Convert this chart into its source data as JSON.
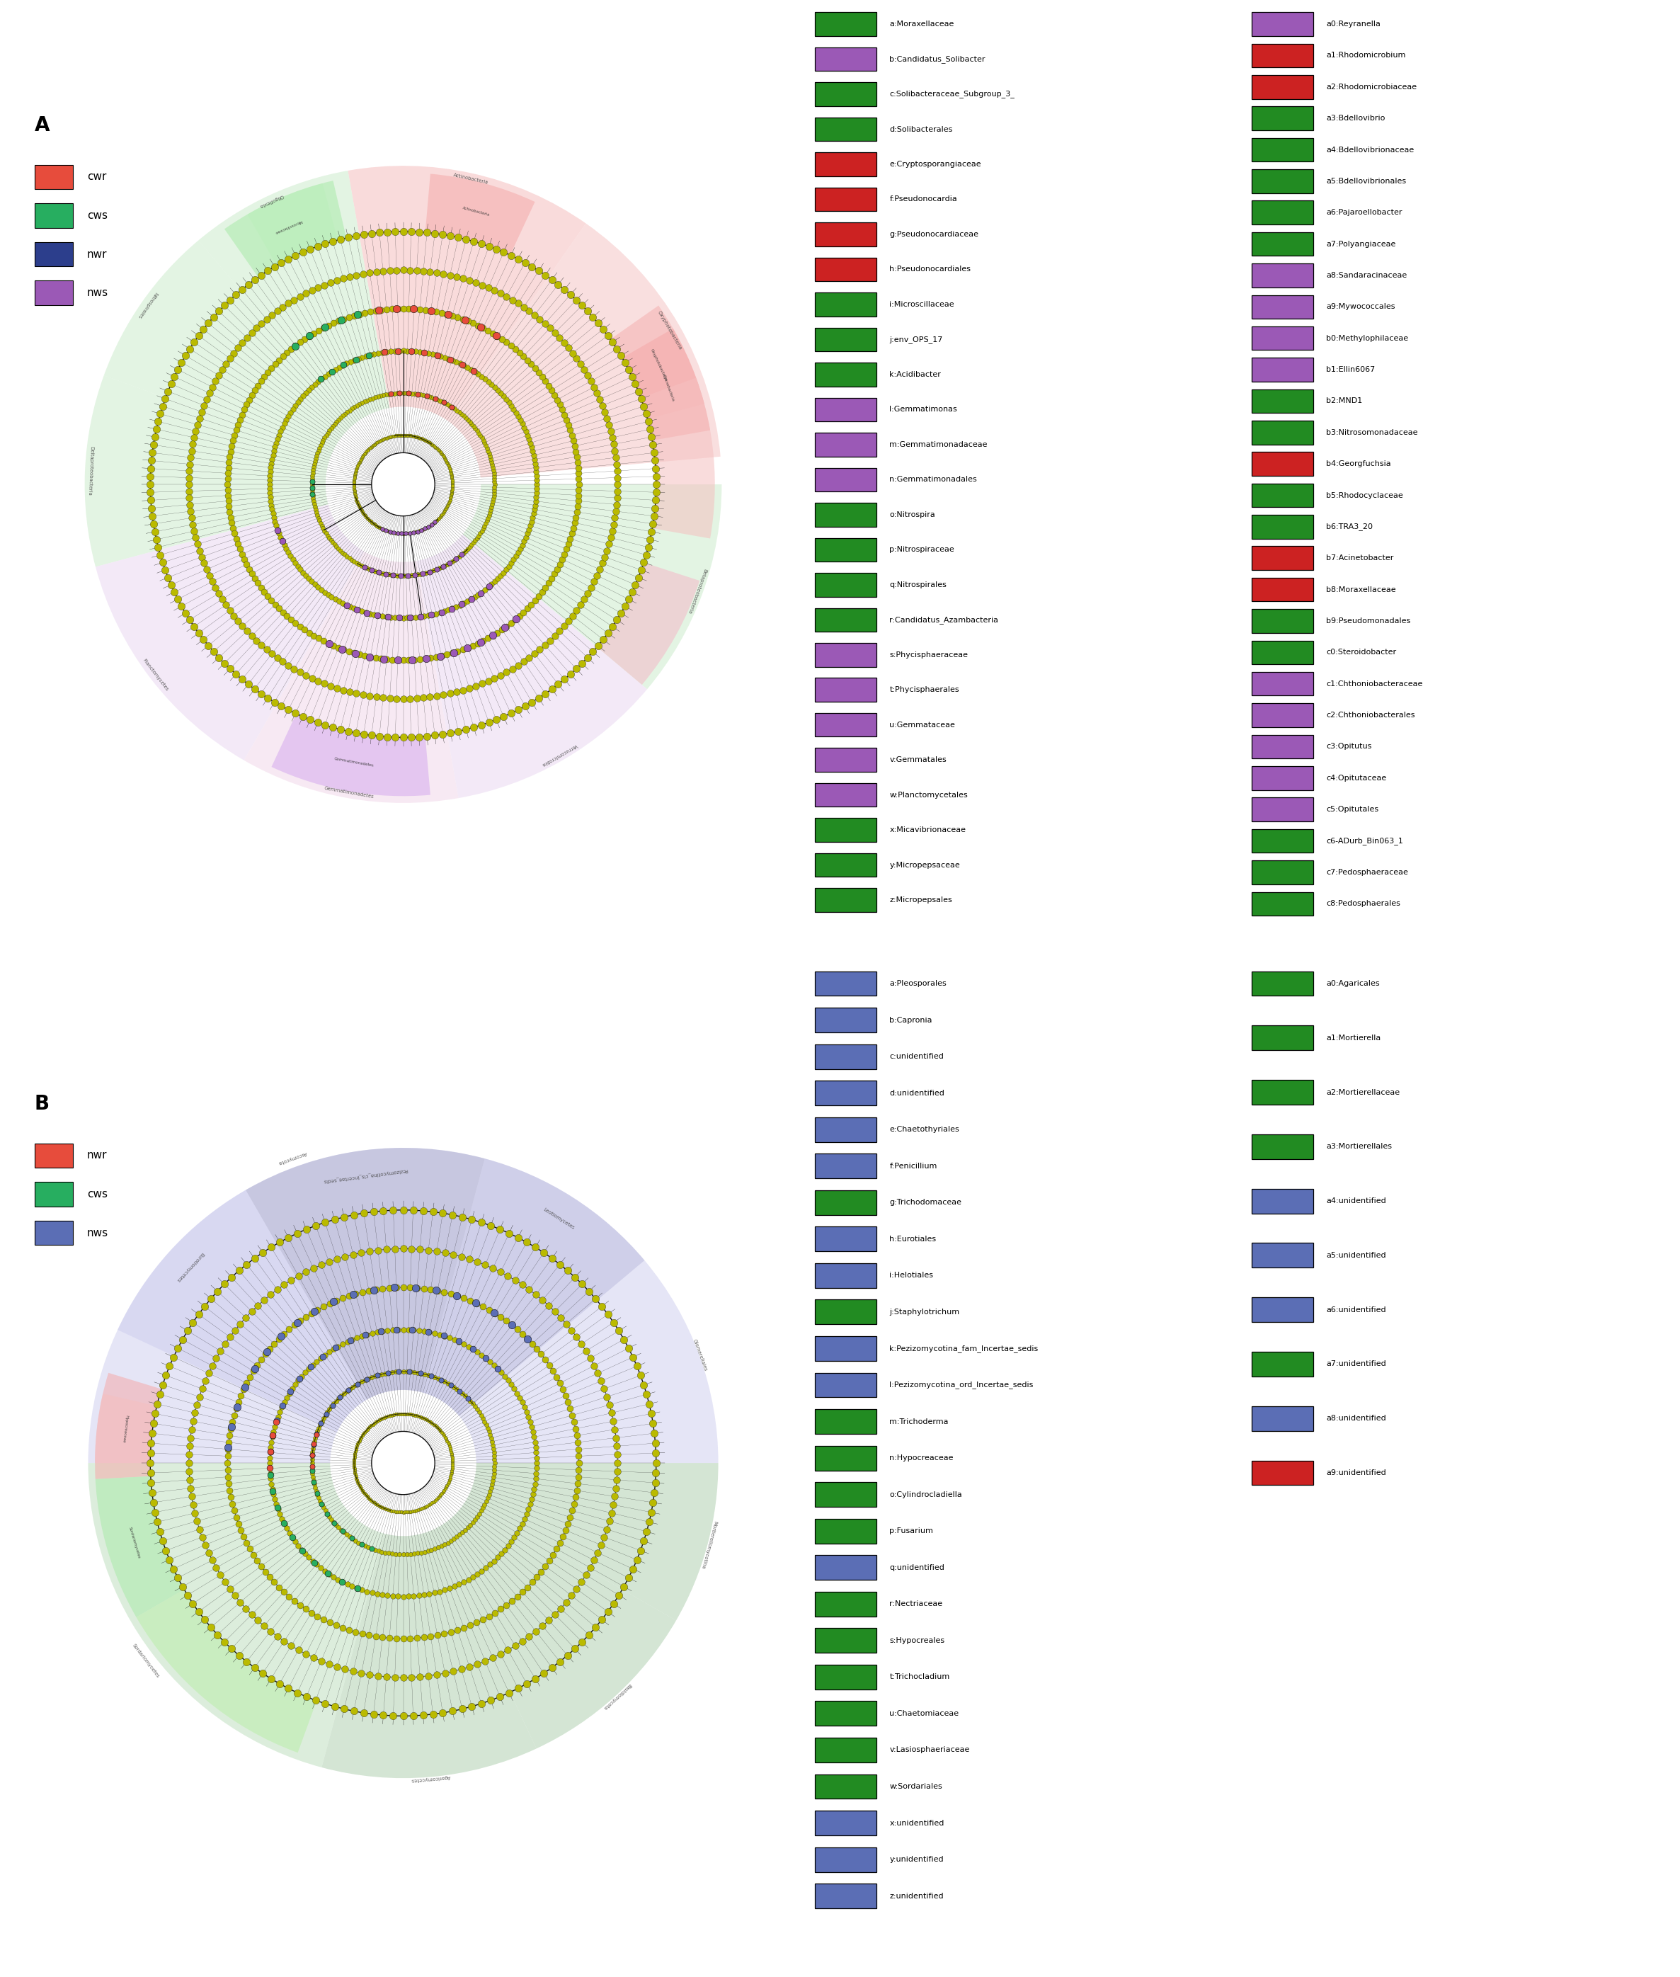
{
  "panel_A_legend_col1": [
    {
      "label": "a:Moraxellaceae",
      "color": "#228B22"
    },
    {
      "label": "b:Candidatus_Solibacter",
      "color": "#9B59B6"
    },
    {
      "label": "c:Solibacteraceae_Subgroup_3_",
      "color": "#228B22"
    },
    {
      "label": "d:Solibacterales",
      "color": "#228B22"
    },
    {
      "label": "e:Cryptosporangiaceae",
      "color": "#CC2222"
    },
    {
      "label": "f:Pseudonocardia",
      "color": "#CC2222"
    },
    {
      "label": "g:Pseudonocardiaceae",
      "color": "#CC2222"
    },
    {
      "label": "h:Pseudonocardiales",
      "color": "#CC2222"
    },
    {
      "label": "i:Microscillaceae",
      "color": "#228B22"
    },
    {
      "label": "j:env_OPS_17",
      "color": "#228B22"
    },
    {
      "label": "k:Acidibacter",
      "color": "#228B22"
    },
    {
      "label": "l:Gemmatimonas",
      "color": "#9B59B6"
    },
    {
      "label": "m:Gemmatimonadaceae",
      "color": "#9B59B6"
    },
    {
      "label": "n:Gemmatimonadales",
      "color": "#9B59B6"
    },
    {
      "label": "o:Nitrospira",
      "color": "#228B22"
    },
    {
      "label": "p:Nitrospiraceae",
      "color": "#228B22"
    },
    {
      "label": "q:Nitrospirales",
      "color": "#228B22"
    },
    {
      "label": "r:Candidatus_Azambacteria",
      "color": "#228B22"
    },
    {
      "label": "s:Phycisphaeraceae",
      "color": "#9B59B6"
    },
    {
      "label": "t:Phycisphaerales",
      "color": "#9B59B6"
    },
    {
      "label": "u:Gemmataceae",
      "color": "#9B59B6"
    },
    {
      "label": "v:Gemmatales",
      "color": "#9B59B6"
    },
    {
      "label": "w:Planctomycetales",
      "color": "#9B59B6"
    },
    {
      "label": "x:Micavibrionaceae",
      "color": "#228B22"
    },
    {
      "label": "y:Micropepsaceae",
      "color": "#228B22"
    },
    {
      "label": "z:Micropepsales",
      "color": "#228B22"
    }
  ],
  "panel_A_legend_col2": [
    {
      "label": "a0:Reyranella",
      "color": "#9B59B6"
    },
    {
      "label": "a1:Rhodomicrobium",
      "color": "#CC2222"
    },
    {
      "label": "a2:Rhodomicrobiaceae",
      "color": "#CC2222"
    },
    {
      "label": "a3:Bdellovibrio",
      "color": "#228B22"
    },
    {
      "label": "a4:Bdellovibrionaceae",
      "color": "#228B22"
    },
    {
      "label": "a5:Bdellovibrionales",
      "color": "#228B22"
    },
    {
      "label": "a6:Pajaroellobacter",
      "color": "#228B22"
    },
    {
      "label": "a7:Polyangiaceae",
      "color": "#228B22"
    },
    {
      "label": "a8:Sandaracinaceae",
      "color": "#9B59B6"
    },
    {
      "label": "a9:Mywococcales",
      "color": "#9B59B6"
    },
    {
      "label": "b0:Methylophilaceae",
      "color": "#9B59B6"
    },
    {
      "label": "b1:Ellin6067",
      "color": "#9B59B6"
    },
    {
      "label": "b2:MND1",
      "color": "#228B22"
    },
    {
      "label": "b3:Nitrosomonadaceae",
      "color": "#228B22"
    },
    {
      "label": "b4:Georgfuchsia",
      "color": "#CC2222"
    },
    {
      "label": "b5:Rhodocyclaceae",
      "color": "#228B22"
    },
    {
      "label": "b6:TRA3_20",
      "color": "#228B22"
    },
    {
      "label": "b7:Acinetobacter",
      "color": "#CC2222"
    },
    {
      "label": "b8:Moraxellaceae",
      "color": "#CC2222"
    },
    {
      "label": "b9:Pseudomonadales",
      "color": "#228B22"
    },
    {
      "label": "c0:Steroidobacter",
      "color": "#228B22"
    },
    {
      "label": "c1:Chthoniobacteraceae",
      "color": "#9B59B6"
    },
    {
      "label": "c2:Chthoniobacterales",
      "color": "#9B59B6"
    },
    {
      "label": "c3:Opitutus",
      "color": "#9B59B6"
    },
    {
      "label": "c4:Opitutaceae",
      "color": "#9B59B6"
    },
    {
      "label": "c5:Opitutales",
      "color": "#9B59B6"
    },
    {
      "label": "c6-ADurb_Bin063_1",
      "color": "#228B22"
    },
    {
      "label": "c7:Pedosphaeraceae",
      "color": "#228B22"
    },
    {
      "label": "c8:Pedosphaerales",
      "color": "#228B22"
    }
  ],
  "panel_A_group_legend": [
    {
      "label": "cwr",
      "color": "#E74C3C"
    },
    {
      "label": "cws",
      "color": "#27AE60"
    },
    {
      "label": "nwr",
      "color": "#2C3E8C"
    },
    {
      "label": "nws",
      "color": "#9B59B6"
    }
  ],
  "panel_B_legend_col1": [
    {
      "label": "a:Pleosporales",
      "color": "#5B6EB5"
    },
    {
      "label": "b:Capronia",
      "color": "#5B6EB5"
    },
    {
      "label": "c:unidentified",
      "color": "#5B6EB5"
    },
    {
      "label": "d:unidentified",
      "color": "#5B6EB5"
    },
    {
      "label": "e:Chaetothyriales",
      "color": "#5B6EB5"
    },
    {
      "label": "f:Penicillium",
      "color": "#5B6EB5"
    },
    {
      "label": "g:Trichodomaceae",
      "color": "#228B22"
    },
    {
      "label": "h:Eurotiales",
      "color": "#5B6EB5"
    },
    {
      "label": "i:Helotiales",
      "color": "#5B6EB5"
    },
    {
      "label": "j:Staphylotrichum",
      "color": "#228B22"
    },
    {
      "label": "k:Pezizomycotina_fam_Incertae_sedis",
      "color": "#5B6EB5"
    },
    {
      "label": "l:Pezizomycotina_ord_Incertae_sedis",
      "color": "#5B6EB5"
    },
    {
      "label": "m:Trichoderma",
      "color": "#228B22"
    },
    {
      "label": "n:Hypocreaceae",
      "color": "#228B22"
    },
    {
      "label": "o:Cylindrocladiella",
      "color": "#228B22"
    },
    {
      "label": "p:Fusarium",
      "color": "#228B22"
    },
    {
      "label": "q:unidentified",
      "color": "#5B6EB5"
    },
    {
      "label": "r:Nectriaceae",
      "color": "#228B22"
    },
    {
      "label": "s:Hypocreales",
      "color": "#228B22"
    },
    {
      "label": "t:Trichocladium",
      "color": "#228B22"
    },
    {
      "label": "u:Chaetomiaceae",
      "color": "#228B22"
    },
    {
      "label": "v:Lasiosphaeriaceae",
      "color": "#228B22"
    },
    {
      "label": "w:Sordariales",
      "color": "#228B22"
    },
    {
      "label": "x:unidentified",
      "color": "#5B6EB5"
    },
    {
      "label": "y:unidentified",
      "color": "#5B6EB5"
    },
    {
      "label": "z:unidentified",
      "color": "#5B6EB5"
    }
  ],
  "panel_B_legend_col2": [
    {
      "label": "a0:Agaricales",
      "color": "#228B22"
    },
    {
      "label": "a1:Mortierella",
      "color": "#228B22"
    },
    {
      "label": "a2:Mortierellaceae",
      "color": "#228B22"
    },
    {
      "label": "a3:Mortierellales",
      "color": "#228B22"
    },
    {
      "label": "a4:unidentified",
      "color": "#5B6EB5"
    },
    {
      "label": "a5:unidentified",
      "color": "#5B6EB5"
    },
    {
      "label": "a6:unidentified",
      "color": "#5B6EB5"
    },
    {
      "label": "a7:unidentified",
      "color": "#228B22"
    },
    {
      "label": "a8:unidentified",
      "color": "#5B6EB5"
    },
    {
      "label": "a9:unidentified",
      "color": "#CC2222"
    }
  ],
  "panel_B_group_legend": [
    {
      "label": "nwr",
      "color": "#E74C3C"
    },
    {
      "label": "cws",
      "color": "#27AE60"
    },
    {
      "label": "nws",
      "color": "#5B6EB5"
    }
  ],
  "dot_color": "#BABA00",
  "dot_edge_color": "#000000",
  "spoke_color": "#000000"
}
